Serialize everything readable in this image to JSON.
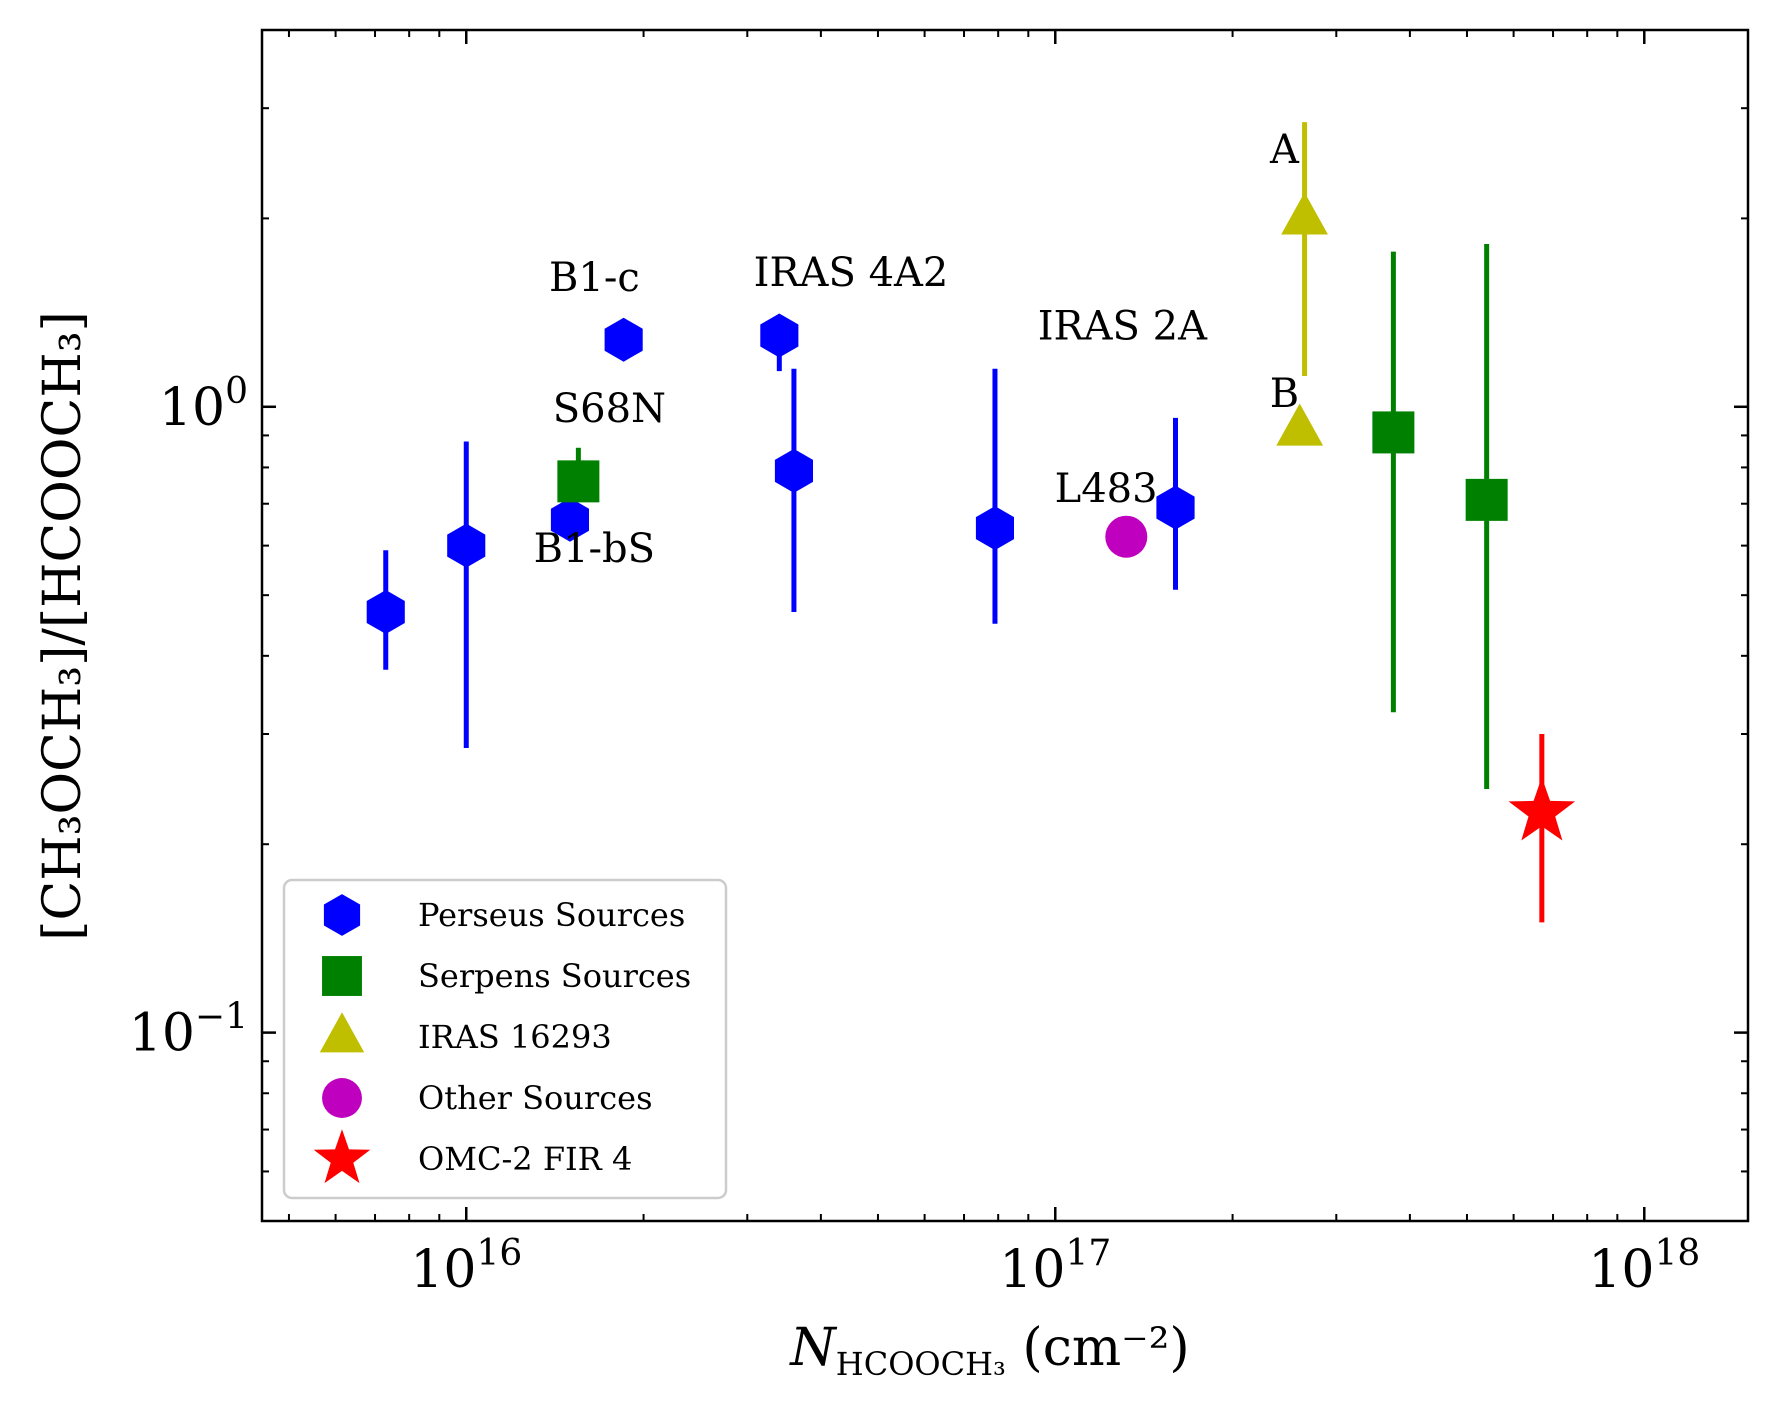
{
  "chart_data": {
    "type": "scatter",
    "xscale": "log",
    "yscale": "log",
    "xlim": [
      4500000000000000.0,
      1.5e+18
    ],
    "ylim": [
      0.05,
      4.0
    ],
    "xlabel": {
      "main": "N",
      "sub": "HCOOCH₃",
      "rest": " (cm⁻²)"
    },
    "ylabel": "[CH₃OCH₃]/[HCOOCH₃]",
    "xticks": [
      {
        "value": 1e+16,
        "base": "10",
        "exp": "16"
      },
      {
        "value": 1e+17,
        "base": "10",
        "exp": "17"
      },
      {
        "value": 1e+18,
        "base": "10",
        "exp": "18"
      }
    ],
    "yticks": [
      {
        "value": 1.0,
        "base": "10",
        "exp": "0"
      },
      {
        "value": 0.1,
        "base": "10",
        "exp": "−1"
      }
    ],
    "series": [
      {
        "name": "Perseus Sources",
        "marker": "hexagon",
        "color": "#0000ff",
        "points": [
          {
            "x": 7300000000000000.0,
            "y": 0.47,
            "ylo": 0.38,
            "yhi": 0.59
          },
          {
            "x": 1e+16,
            "y": 0.6,
            "ylo": 0.285,
            "yhi": 0.88
          },
          {
            "x": 1.5e+16,
            "y": 0.66,
            "ylo": 0.66,
            "yhi": 0.66
          },
          {
            "x": 1.85e+16,
            "y": 1.28,
            "ylo": 1.28,
            "yhi": 1.28
          },
          {
            "x": 3.4e+16,
            "y": 1.3,
            "ylo": 1.14,
            "yhi": 1.4
          },
          {
            "x": 3.6e+16,
            "y": 0.79,
            "ylo": 0.47,
            "yhi": 1.15
          },
          {
            "x": 7.9e+16,
            "y": 0.64,
            "ylo": 0.45,
            "yhi": 1.15
          },
          {
            "x": 1.6e+17,
            "y": 0.69,
            "ylo": 0.51,
            "yhi": 0.96
          }
        ]
      },
      {
        "name": "Serpens Sources",
        "marker": "square",
        "color": "#008000",
        "points": [
          {
            "x": 1.55e+16,
            "y": 0.76,
            "ylo": 0.76,
            "yhi": 0.86
          },
          {
            "x": 3.75e+17,
            "y": 0.91,
            "ylo": 0.325,
            "yhi": 1.77
          },
          {
            "x": 5.4e+17,
            "y": 0.71,
            "ylo": 0.245,
            "yhi": 1.82
          }
        ]
      },
      {
        "name": "IRAS 16293",
        "marker": "triangle",
        "color": "#bfbf00",
        "points": [
          {
            "x": 2.65e+17,
            "y": 2.0,
            "ylo": 1.12,
            "yhi": 2.85
          },
          {
            "x": 2.6e+17,
            "y": 0.92,
            "ylo": 0.92,
            "yhi": 0.92
          }
        ]
      },
      {
        "name": "Other Sources",
        "marker": "circle",
        "color": "#bf00bf",
        "points": [
          {
            "x": 1.32e+17,
            "y": 0.62,
            "ylo": 0.62,
            "yhi": 0.62
          }
        ]
      },
      {
        "name": "OMC-2 FIR 4",
        "marker": "star",
        "color": "#ff0000",
        "points": [
          {
            "x": 6.7e+17,
            "y": 0.225,
            "ylo": 0.15,
            "yhi": 0.3
          }
        ]
      }
    ],
    "annotations": [
      {
        "text": "B1-c",
        "x": 1.65e+16,
        "y": 1.53
      },
      {
        "text": "IRAS 4A2",
        "x": 4.5e+16,
        "y": 1.56
      },
      {
        "text": "IRAS 2A",
        "x": 1.3e+17,
        "y": 1.28
      },
      {
        "text": "S68N",
        "x": 1.75e+16,
        "y": 0.945
      },
      {
        "text": "B1-bS",
        "x": 1.65e+16,
        "y": 0.565
      },
      {
        "text": "L483",
        "x": 1.22e+17,
        "y": 0.705
      },
      {
        "text": "A",
        "x": 2.45e+17,
        "y": 2.45
      },
      {
        "text": "B",
        "x": 2.45e+17,
        "y": 1.0
      }
    ],
    "legend_position": "lower-left",
    "grid": false
  }
}
